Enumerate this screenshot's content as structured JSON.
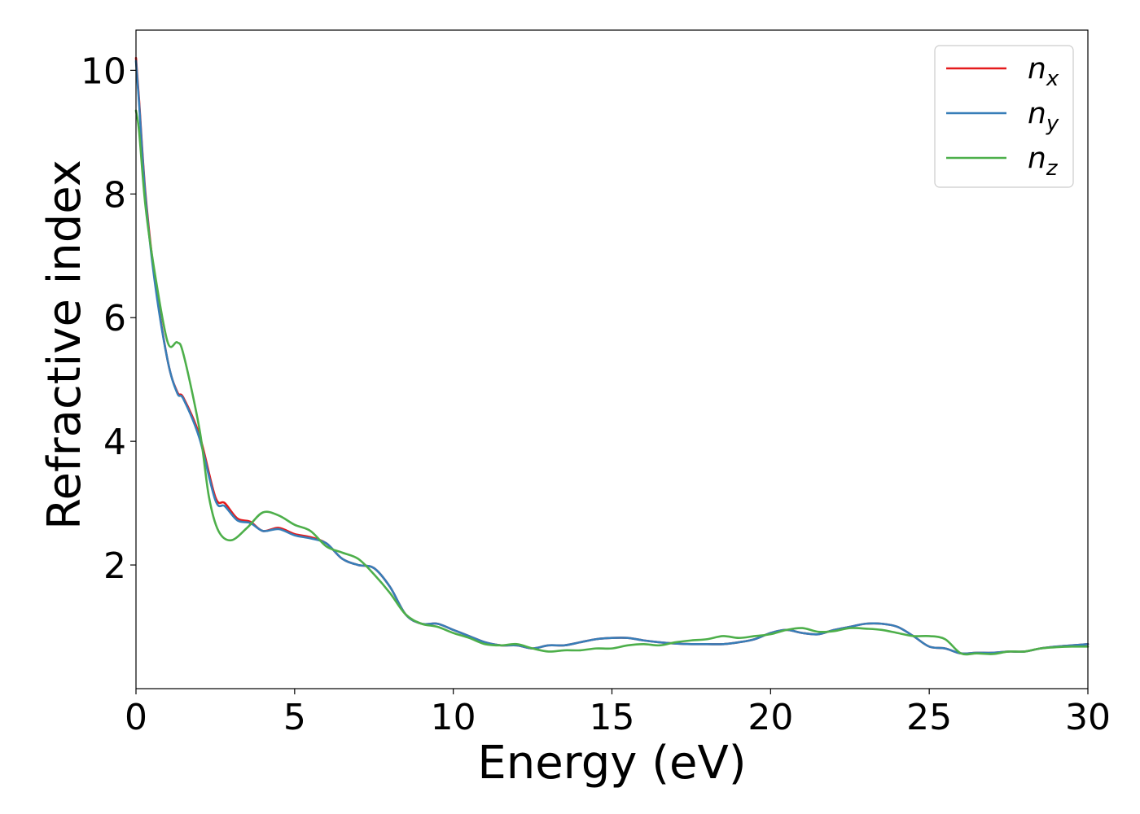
{
  "chart_data": {
    "type": "line",
    "xlabel": "Energy (eV)",
    "ylabel": "Refractive index",
    "xlim": [
      0,
      30
    ],
    "ylim": [
      0,
      10.65
    ],
    "xticks": [
      0,
      5,
      10,
      15,
      20,
      25,
      30
    ],
    "xtick_labels": [
      "0",
      "5",
      "10",
      "15",
      "20",
      "25",
      "30"
    ],
    "yticks": [
      2,
      4,
      6,
      8,
      10
    ],
    "ytick_labels": [
      "2",
      "4",
      "6",
      "8",
      "10"
    ],
    "grid": false,
    "legend_position": "top-right",
    "series": [
      {
        "name": "n_x",
        "legend_base": "n",
        "legend_sub": "x",
        "color": "#e41a1c",
        "x": [
          0,
          0.1,
          0.3,
          0.6,
          1.0,
          1.3,
          1.5,
          2.0,
          2.5,
          2.8,
          3.2,
          3.6,
          4.0,
          4.5,
          5.0,
          5.5,
          6.0,
          6.5,
          7.0,
          7.5,
          8.0,
          8.5,
          9.0,
          9.5,
          10.0,
          10.5,
          11.0,
          11.5,
          12.0,
          12.5,
          13.0,
          13.5,
          14.0,
          14.5,
          15.0,
          15.5,
          16.0,
          16.5,
          17.0,
          17.5,
          18.0,
          18.5,
          19.0,
          19.5,
          20.0,
          20.5,
          21.0,
          21.5,
          22.0,
          22.5,
          23.0,
          23.5,
          24.0,
          24.5,
          25.0,
          25.5,
          26.0,
          26.5,
          27.0,
          27.5,
          28.0,
          28.5,
          29.0,
          29.5,
          30.0
        ],
        "y": [
          10.2,
          9.5,
          8.0,
          6.6,
          5.3,
          4.8,
          4.7,
          4.1,
          3.1,
          3.0,
          2.75,
          2.7,
          2.55,
          2.6,
          2.5,
          2.45,
          2.35,
          2.1,
          2.0,
          1.95,
          1.65,
          1.2,
          1.05,
          1.05,
          0.95,
          0.85,
          0.75,
          0.7,
          0.7,
          0.65,
          0.7,
          0.7,
          0.75,
          0.8,
          0.82,
          0.82,
          0.78,
          0.75,
          0.73,
          0.72,
          0.72,
          0.72,
          0.75,
          0.8,
          0.9,
          0.95,
          0.9,
          0.88,
          0.95,
          1.0,
          1.05,
          1.05,
          1.0,
          0.85,
          0.68,
          0.65,
          0.57,
          0.58,
          0.58,
          0.6,
          0.6,
          0.65,
          0.68,
          0.7,
          0.72
        ]
      },
      {
        "name": "n_y",
        "legend_base": "n",
        "legend_sub": "y",
        "color": "#377eb8",
        "x": [
          0,
          0.1,
          0.3,
          0.6,
          1.0,
          1.3,
          1.5,
          2.0,
          2.5,
          2.8,
          3.2,
          3.6,
          4.0,
          4.5,
          5.0,
          5.5,
          6.0,
          6.5,
          7.0,
          7.5,
          8.0,
          8.5,
          9.0,
          9.5,
          10.0,
          10.5,
          11.0,
          11.5,
          12.0,
          12.5,
          13.0,
          13.5,
          14.0,
          14.5,
          15.0,
          15.5,
          16.0,
          16.5,
          17.0,
          17.5,
          18.0,
          18.5,
          19.0,
          19.5,
          20.0,
          20.5,
          21.0,
          21.5,
          22.0,
          22.5,
          23.0,
          23.5,
          24.0,
          24.5,
          25.0,
          25.5,
          26.0,
          26.5,
          27.0,
          27.5,
          28.0,
          28.5,
          29.0,
          29.5,
          30.0
        ],
        "y": [
          10.15,
          9.45,
          7.95,
          6.55,
          5.3,
          4.78,
          4.68,
          4.05,
          3.05,
          2.95,
          2.72,
          2.68,
          2.55,
          2.58,
          2.48,
          2.43,
          2.35,
          2.1,
          2.0,
          1.95,
          1.65,
          1.2,
          1.05,
          1.05,
          0.95,
          0.85,
          0.75,
          0.7,
          0.7,
          0.65,
          0.7,
          0.7,
          0.75,
          0.8,
          0.82,
          0.82,
          0.78,
          0.75,
          0.73,
          0.72,
          0.72,
          0.72,
          0.75,
          0.8,
          0.9,
          0.95,
          0.9,
          0.88,
          0.95,
          1.0,
          1.05,
          1.05,
          1.0,
          0.85,
          0.68,
          0.65,
          0.57,
          0.58,
          0.58,
          0.6,
          0.6,
          0.65,
          0.68,
          0.7,
          0.72
        ]
      },
      {
        "name": "n_z",
        "legend_base": "n",
        "legend_sub": "z",
        "color": "#4daf4a",
        "x": [
          0,
          0.1,
          0.3,
          0.6,
          1.0,
          1.3,
          1.5,
          2.0,
          2.3,
          2.6,
          3.0,
          3.5,
          4.0,
          4.5,
          5.0,
          5.5,
          6.0,
          6.5,
          7.0,
          7.5,
          8.0,
          8.5,
          9.0,
          9.5,
          10.0,
          10.5,
          11.0,
          11.5,
          12.0,
          12.5,
          13.0,
          13.5,
          14.0,
          14.5,
          15.0,
          15.5,
          16.0,
          16.5,
          17.0,
          17.5,
          18.0,
          18.5,
          19.0,
          19.5,
          20.0,
          20.5,
          21.0,
          21.5,
          22.0,
          22.5,
          23.0,
          23.5,
          24.0,
          24.5,
          25.0,
          25.5,
          26.0,
          26.5,
          27.0,
          27.5,
          28.0,
          28.5,
          29.0,
          29.5,
          30.0
        ],
        "y": [
          9.35,
          9.0,
          7.8,
          6.7,
          5.6,
          5.6,
          5.4,
          4.2,
          3.1,
          2.55,
          2.4,
          2.6,
          2.85,
          2.8,
          2.65,
          2.55,
          2.3,
          2.2,
          2.1,
          1.85,
          1.55,
          1.2,
          1.05,
          1.0,
          0.9,
          0.82,
          0.72,
          0.7,
          0.72,
          0.65,
          0.6,
          0.62,
          0.62,
          0.65,
          0.65,
          0.7,
          0.72,
          0.7,
          0.75,
          0.78,
          0.8,
          0.85,
          0.82,
          0.85,
          0.88,
          0.95,
          0.98,
          0.92,
          0.93,
          0.98,
          0.97,
          0.95,
          0.9,
          0.85,
          0.85,
          0.8,
          0.57,
          0.57,
          0.56,
          0.6,
          0.6,
          0.65,
          0.67,
          0.68,
          0.68
        ]
      }
    ]
  }
}
